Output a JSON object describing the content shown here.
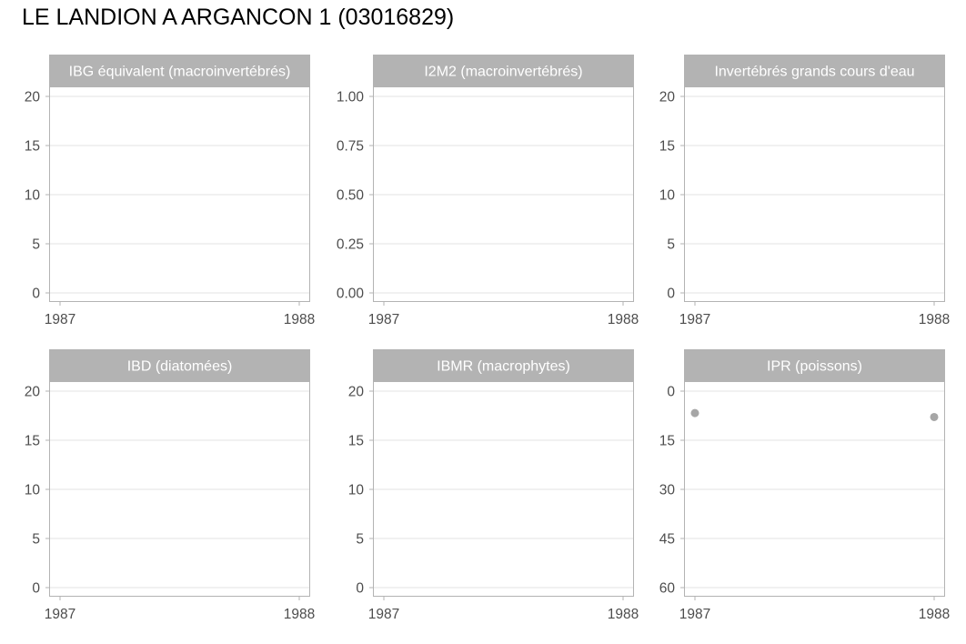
{
  "page": {
    "title": "LE LANDION A ARGANCON 1 (03016829)"
  },
  "colors": {
    "strip_bg": "#b3b3b3",
    "strip_text": "#ffffff",
    "panel_border": "#b3b3b3",
    "grid": "#e3e3e3",
    "tick_text": "#4d4d4d",
    "point": "#a6a6a6"
  },
  "chart_data": [
    {
      "type": "scatter",
      "title": "IBG équivalent (macroinvertébrés)",
      "x_ticks": [
        1987,
        1988
      ],
      "xlim": [
        1987,
        1988
      ],
      "y_ticks": [
        0,
        5,
        10,
        15,
        20
      ],
      "y_tick_labels": [
        "0",
        "5",
        "10",
        "15",
        "20"
      ],
      "ylim": [
        0,
        20
      ],
      "y_reversed": false,
      "points": []
    },
    {
      "type": "scatter",
      "title": "I2M2 (macroinvertébrés)",
      "x_ticks": [
        1987,
        1988
      ],
      "xlim": [
        1987,
        1988
      ],
      "y_ticks": [
        0,
        0.25,
        0.5,
        0.75,
        1
      ],
      "y_tick_labels": [
        "0.00",
        "0.25",
        "0.50",
        "0.75",
        "1.00"
      ],
      "ylim": [
        0,
        1
      ],
      "y_reversed": false,
      "points": []
    },
    {
      "type": "scatter",
      "title": "Invertébrés grands cours d'eau",
      "x_ticks": [
        1987,
        1988
      ],
      "xlim": [
        1987,
        1988
      ],
      "y_ticks": [
        0,
        5,
        10,
        15,
        20
      ],
      "y_tick_labels": [
        "0",
        "5",
        "10",
        "15",
        "20"
      ],
      "ylim": [
        0,
        20
      ],
      "y_reversed": false,
      "points": []
    },
    {
      "type": "scatter",
      "title": "IBD (diatomées)",
      "x_ticks": [
        1987,
        1988
      ],
      "xlim": [
        1987,
        1988
      ],
      "y_ticks": [
        0,
        5,
        10,
        15,
        20
      ],
      "y_tick_labels": [
        "0",
        "5",
        "10",
        "15",
        "20"
      ],
      "ylim": [
        0,
        20
      ],
      "y_reversed": false,
      "points": []
    },
    {
      "type": "scatter",
      "title": "IBMR (macrophytes)",
      "x_ticks": [
        1987,
        1988
      ],
      "xlim": [
        1987,
        1988
      ],
      "y_ticks": [
        0,
        5,
        10,
        15,
        20
      ],
      "y_tick_labels": [
        "0",
        "5",
        "10",
        "15",
        "20"
      ],
      "ylim": [
        0,
        20
      ],
      "y_reversed": false,
      "points": []
    },
    {
      "type": "scatter",
      "title": "IPR (poissons)",
      "x_ticks": [
        1987,
        1988
      ],
      "xlim": [
        1987,
        1988
      ],
      "y_ticks": [
        0,
        15,
        30,
        45,
        60
      ],
      "y_tick_labels": [
        "0",
        "15",
        "30",
        "45",
        "60"
      ],
      "ylim": [
        0,
        60
      ],
      "y_reversed": true,
      "points": [
        {
          "x": 1987,
          "y": 6.7
        },
        {
          "x": 1988,
          "y": 7.9
        }
      ]
    }
  ]
}
